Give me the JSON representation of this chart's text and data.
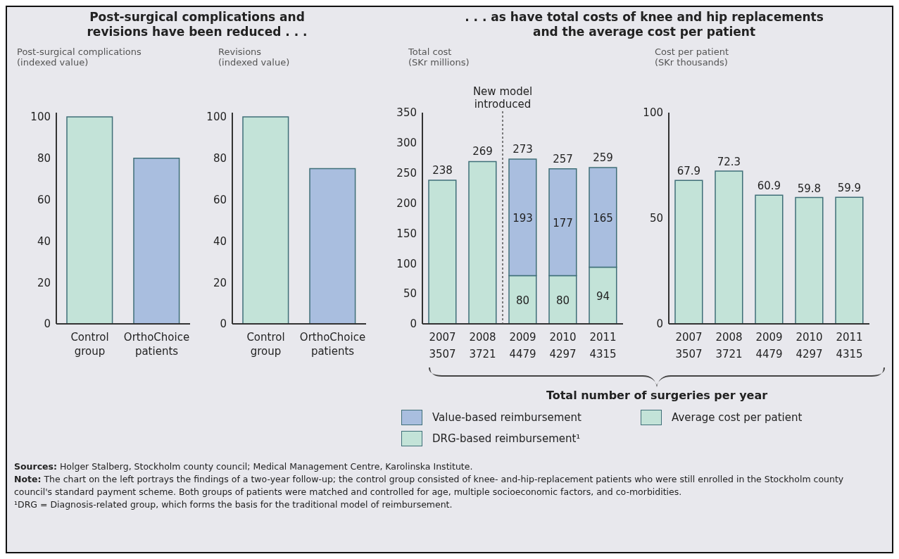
{
  "chart_data": [
    {
      "type": "bar",
      "title": "Post-surgical complications and revisions have been reduced . . .",
      "ylabel": "Post-surgical complications (indexed value)",
      "categories": [
        "Control group",
        "OrthoChoice patients"
      ],
      "values": [
        100,
        80
      ],
      "colors": [
        "#c3e3d8",
        "#a9bedf"
      ],
      "ylim": [
        0,
        102
      ],
      "yticks": [
        0,
        20,
        40,
        60,
        80,
        100
      ],
      "grid": false,
      "legend": false
    },
    {
      "type": "bar",
      "ylabel": "Revisions (indexed value)",
      "categories": [
        "Control group",
        "OrthoChoice patients"
      ],
      "values": [
        100,
        75
      ],
      "colors": [
        "#c3e3d8",
        "#a9bedf"
      ],
      "ylim": [
        0,
        102
      ],
      "yticks": [
        0,
        20,
        40,
        60,
        80,
        100
      ],
      "grid": false,
      "legend": false
    },
    {
      "type": "bar",
      "title": ". . . as have total costs of knee and hip replacements and the average cost per patient",
      "ylabel": "Total cost (SKr millions)",
      "categories": [
        "2007",
        "2008",
        "2009",
        "2010",
        "2011"
      ],
      "stacked": true,
      "series": [
        {
          "name": "DRG-based reimbursement¹",
          "color": "#c3e3d8",
          "values": [
            238,
            269,
            80,
            80,
            94
          ],
          "value_labels": [
            null,
            null,
            "80",
            "80",
            "94"
          ]
        },
        {
          "name": "Value-based reimbursement",
          "color": "#a9bedf",
          "values": [
            null,
            null,
            193,
            177,
            165
          ],
          "value_labels": [
            null,
            null,
            "193",
            "177",
            "165"
          ]
        }
      ],
      "totals": [
        "238",
        "269",
        "273",
        "257",
        "259"
      ],
      "ylim": [
        0,
        350
      ],
      "yticks": [
        0,
        50,
        100,
        150,
        200,
        250,
        300,
        350
      ],
      "grid": false,
      "legend": "bottom",
      "annotations": [
        "3507",
        "3721",
        "4479",
        "4297",
        "4315",
        "New model introduced",
        "Total number of surgeries per year"
      ]
    },
    {
      "type": "bar",
      "ylabel": "Cost per patient (SKr thousands)",
      "categories": [
        "2007",
        "2008",
        "2009",
        "2010",
        "2011"
      ],
      "series": [
        {
          "name": "Average cost per patient",
          "color": "#c3e3d8",
          "values": [
            67.9,
            72.3,
            60.9,
            59.8,
            59.9
          ]
        }
      ],
      "data_labels": true,
      "ylim": [
        0,
        100
      ],
      "yticks": [
        0,
        50,
        100
      ],
      "grid": false,
      "legend": "bottom",
      "annotations": [
        "3507",
        "3721",
        "4479",
        "4297",
        "4315",
        "Sources: Holger Stalberg, Stockholm county council; Medical Management Centre, Karolinska Institute.",
        "Note: The chart on the left portrays the findings of a two-year follow-up; the control group consisted of knee- and-hip-replacement patients who were still enrolled in the Stockholm county council's standard payment scheme. Both groups of patients were matched and controlled for age, multiple socioeconomic factors, and co-morbidities.",
        "¹DRG = Diagnosis-related group, which forms the basis for the traditional model of reimbursement."
      ]
    }
  ]
}
